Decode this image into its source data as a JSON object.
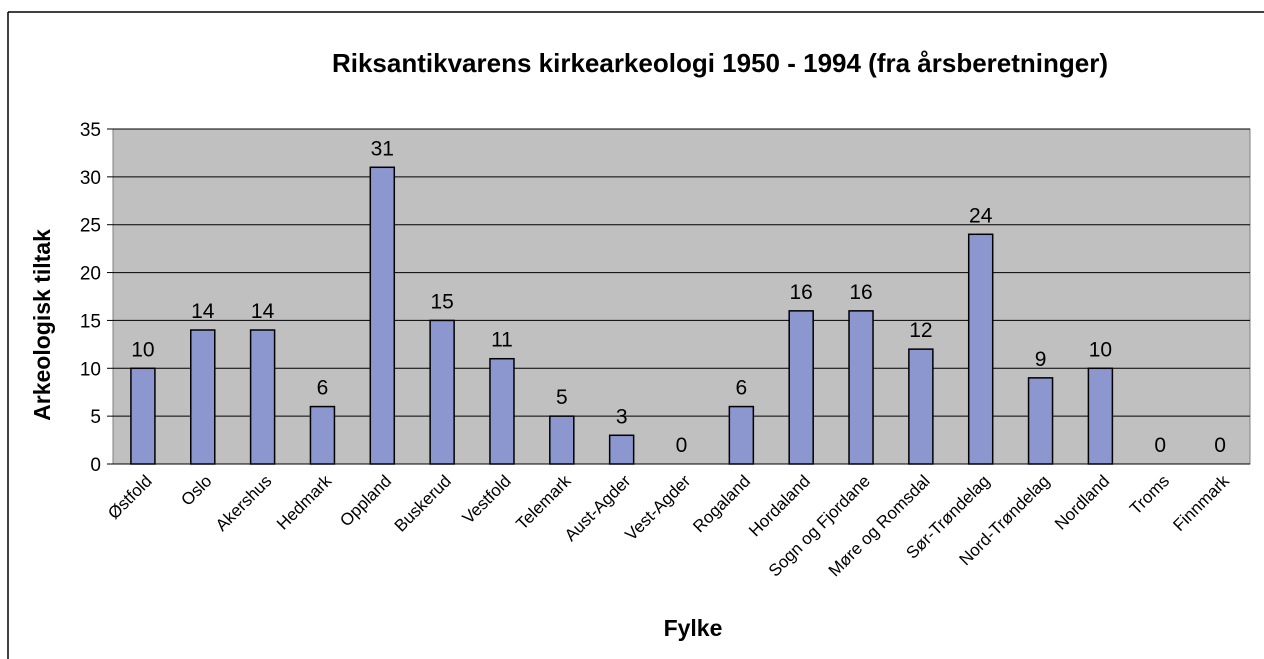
{
  "chart_data": {
    "type": "bar",
    "title": "Riksantikvarens kirkearkeologi 1950 - 1994 (fra årsberetninger)",
    "x_label": "Fylke",
    "y_label": "Arkeologisk tiltak",
    "categories": [
      "Østfold",
      "Oslo",
      "Akershus",
      "Hedmark",
      "Oppland",
      "Buskerud",
      "Vestfold",
      "Telemark",
      "Aust-Agder",
      "Vest-Agder",
      "Rogaland",
      "Hordaland",
      "Sogn og Fjordane",
      "Møre og Romsdal",
      "Sør-Trøndelag",
      "Nord-Trøndelag",
      "Nordland",
      "Troms",
      "Finnmark"
    ],
    "values": [
      10,
      14,
      14,
      6,
      31,
      15,
      11,
      5,
      3,
      0,
      6,
      16,
      16,
      12,
      24,
      9,
      10,
      0,
      0
    ],
    "color": "#8c96cf",
    "ylim": [
      0,
      35
    ],
    "yticks": [
      0,
      5,
      10,
      15,
      20,
      25,
      30,
      35
    ],
    "grid": true
  }
}
